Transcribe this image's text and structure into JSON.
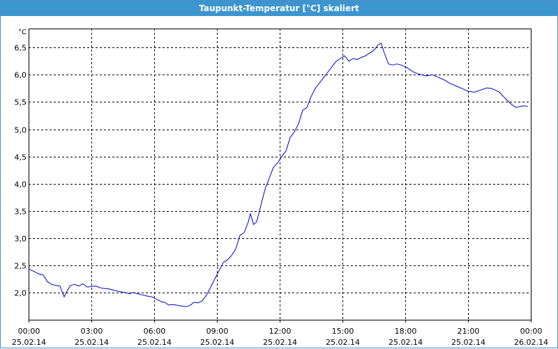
{
  "window": {
    "title": "Taupunkt-Temperatur [°C] skaliert"
  },
  "chart_data": {
    "type": "line",
    "title": "Taupunkt-Temperatur [°C] skaliert",
    "ylabel": "°C",
    "xlabel": "",
    "ylim": [
      1.5,
      6.85
    ],
    "xlim": [
      0,
      24
    ],
    "y_ticks": [
      "2,0",
      "2,5",
      "3,0",
      "3,5",
      "4,0",
      "4,5",
      "5,0",
      "5,5",
      "6,0",
      "6,5"
    ],
    "x_ticks": [
      {
        "time": "00:00",
        "date": "25.02.14"
      },
      {
        "time": "03:00",
        "date": "25.02.14"
      },
      {
        "time": "06:00",
        "date": "25.02.14"
      },
      {
        "time": "09:00",
        "date": "25.02.14"
      },
      {
        "time": "12:00",
        "date": "25.02.14"
      },
      {
        "time": "15:00",
        "date": "25.02.14"
      },
      {
        "time": "18:00",
        "date": "25.02.14"
      },
      {
        "time": "21:00",
        "date": "25.02.14"
      },
      {
        "time": "00:00",
        "date": "26.02.14"
      }
    ],
    "grid": true,
    "line_color": "#0000cc",
    "series": [
      {
        "x": [
          0,
          0.2,
          0.45,
          0.7,
          0.9,
          1.1,
          1.3,
          1.5,
          1.7,
          1.8,
          2.0,
          2.2,
          2.4,
          2.6,
          2.8,
          3.0,
          3.2,
          3.5,
          3.8,
          4.0,
          4.3,
          4.6,
          4.8,
          5.0,
          5.3,
          5.6,
          5.9,
          6.0,
          6.2,
          6.35,
          6.5,
          6.7,
          6.9,
          7.2,
          7.5,
          7.7,
          7.9,
          8.1,
          8.3,
          8.5,
          8.7,
          8.9,
          9.1,
          9.3,
          9.5,
          9.7,
          9.9,
          10.1,
          10.3,
          10.5,
          10.6,
          10.75,
          10.9,
          11.1,
          11.3,
          11.5,
          11.7,
          11.9,
          12.1,
          12.3,
          12.5,
          12.7,
          12.9,
          13.1,
          13.3,
          13.5,
          13.7,
          13.9,
          14.1,
          14.3,
          14.5,
          14.7,
          14.9,
          15.1,
          15.3,
          15.5,
          15.7,
          15.9,
          16.1,
          16.3,
          16.5,
          16.7,
          16.85,
          17.0,
          17.2,
          17.4,
          17.6,
          17.8,
          18.0,
          18.2,
          18.4,
          18.6,
          18.8,
          19.0,
          19.3,
          19.6,
          19.9,
          20.1,
          20.4,
          20.7,
          21.0,
          21.3,
          21.6,
          21.9,
          22.1,
          22.3,
          22.5,
          22.7,
          22.9,
          23.1,
          23.3,
          23.5,
          23.7,
          23.85
        ],
        "y": [
          2.43,
          2.4,
          2.35,
          2.32,
          2.2,
          2.15,
          2.13,
          2.12,
          1.92,
          2.0,
          2.13,
          2.15,
          2.12,
          2.16,
          2.1,
          2.11,
          2.12,
          2.08,
          2.07,
          2.05,
          2.02,
          2.0,
          1.98,
          2.0,
          1.97,
          1.94,
          1.92,
          1.9,
          1.86,
          1.83,
          1.82,
          1.77,
          1.78,
          1.76,
          1.74,
          1.76,
          1.82,
          1.81,
          1.85,
          1.95,
          2.1,
          2.25,
          2.4,
          2.55,
          2.6,
          2.68,
          2.8,
          3.05,
          3.1,
          3.3,
          3.45,
          3.25,
          3.3,
          3.6,
          3.9,
          4.1,
          4.3,
          4.38,
          4.5,
          4.6,
          4.85,
          4.95,
          5.1,
          5.35,
          5.4,
          5.6,
          5.75,
          5.85,
          5.95,
          6.05,
          6.15,
          6.25,
          6.3,
          6.35,
          6.25,
          6.3,
          6.28,
          6.32,
          6.35,
          6.4,
          6.45,
          6.55,
          6.58,
          6.4,
          6.2,
          6.18,
          6.2,
          6.18,
          6.15,
          6.1,
          6.05,
          6.02,
          6.0,
          5.98,
          6.0,
          5.95,
          5.9,
          5.85,
          5.8,
          5.75,
          5.7,
          5.68,
          5.72,
          5.76,
          5.75,
          5.72,
          5.68,
          5.6,
          5.52,
          5.45,
          5.4,
          5.42,
          5.43,
          5.42
        ]
      }
    ]
  }
}
